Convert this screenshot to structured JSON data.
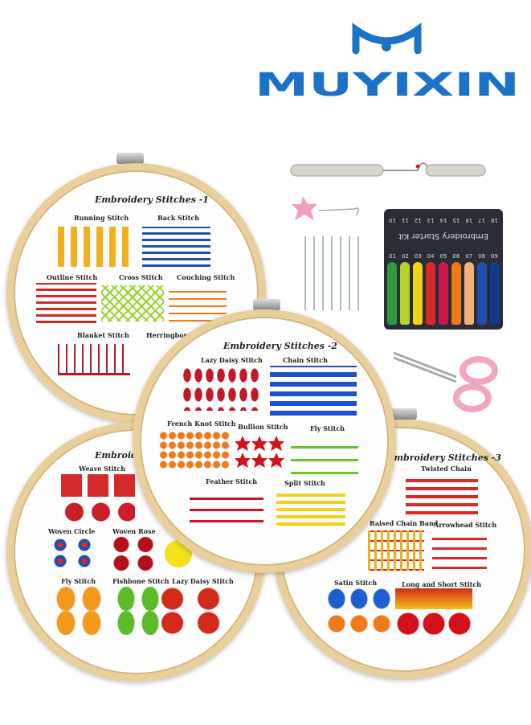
{
  "brand": {
    "name": "MUYIXIN",
    "colors": {
      "blue": "#1a73c8",
      "orange": "#f39a1e"
    }
  },
  "hoops": [
    {
      "title": "Embroidery Stitches -1",
      "stitches": [
        "Running Stitch",
        "Back Stitch",
        "Outline Stitch",
        "Cross Stitch",
        "Couching Stitch",
        "Blanket Stitch",
        "Herringbone"
      ]
    },
    {
      "title": "Embroidery Stitches -2",
      "stitches": [
        "Lazy Daisy Stitch",
        "Chain Stitch",
        "French Knot Stitch",
        "Bullion Stitch",
        "Fly Stitch",
        "Feather Stitch",
        "Split Stitch"
      ]
    },
    {
      "title": "Embroidery Stitches -3",
      "stitches": [
        "Twisted Chain",
        "Raised Chain Band",
        "Arrowhead Stitch",
        "Satin Stitch",
        "Long and Short Stitch"
      ]
    },
    {
      "title": "Embroider",
      "stitches": [
        "Weave Stitch",
        "Woven Circle",
        "Woven Rose",
        "Fly Stitch",
        "Fishbone Stitch",
        "Lazy Daisy Stitch"
      ]
    }
  ],
  "kit_card": {
    "title": "Embroidery Starter Kit",
    "numbers_top": [
      "18",
      "17",
      "16",
      "15",
      "14",
      "13",
      "12",
      "11",
      "10"
    ],
    "numbers_bottom": [
      "01",
      "02",
      "03",
      "04",
      "05",
      "06",
      "07",
      "08",
      "09"
    ]
  },
  "thread_colors": [
    "#2e9b3a",
    "#b6d42a",
    "#f2d21a",
    "#d62a2a",
    "#c8184e",
    "#f07a1a",
    "#f3b27a",
    "#1e4fb0",
    "#103a8a"
  ],
  "tools": [
    "seam-ripper",
    "needle-threader",
    "needles",
    "scissors"
  ]
}
